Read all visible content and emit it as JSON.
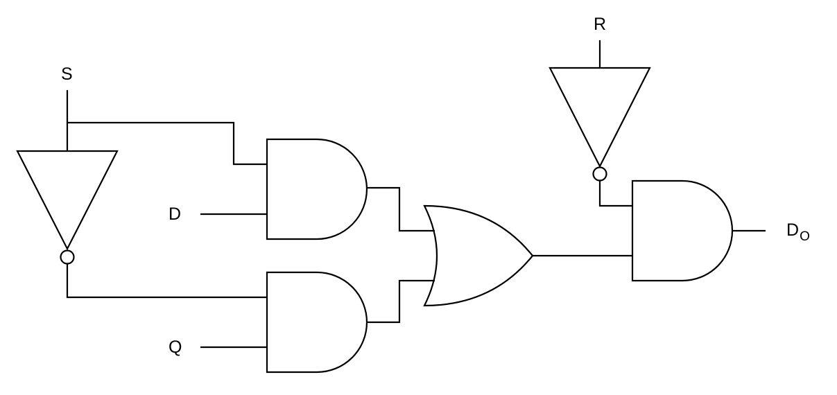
{
  "labels": {
    "S": "S",
    "R": "R",
    "D": "D",
    "Q": "Q",
    "output_main": "D",
    "output_sub": "O"
  },
  "colors": {
    "stroke": "#000000",
    "background": "#ffffff"
  }
}
